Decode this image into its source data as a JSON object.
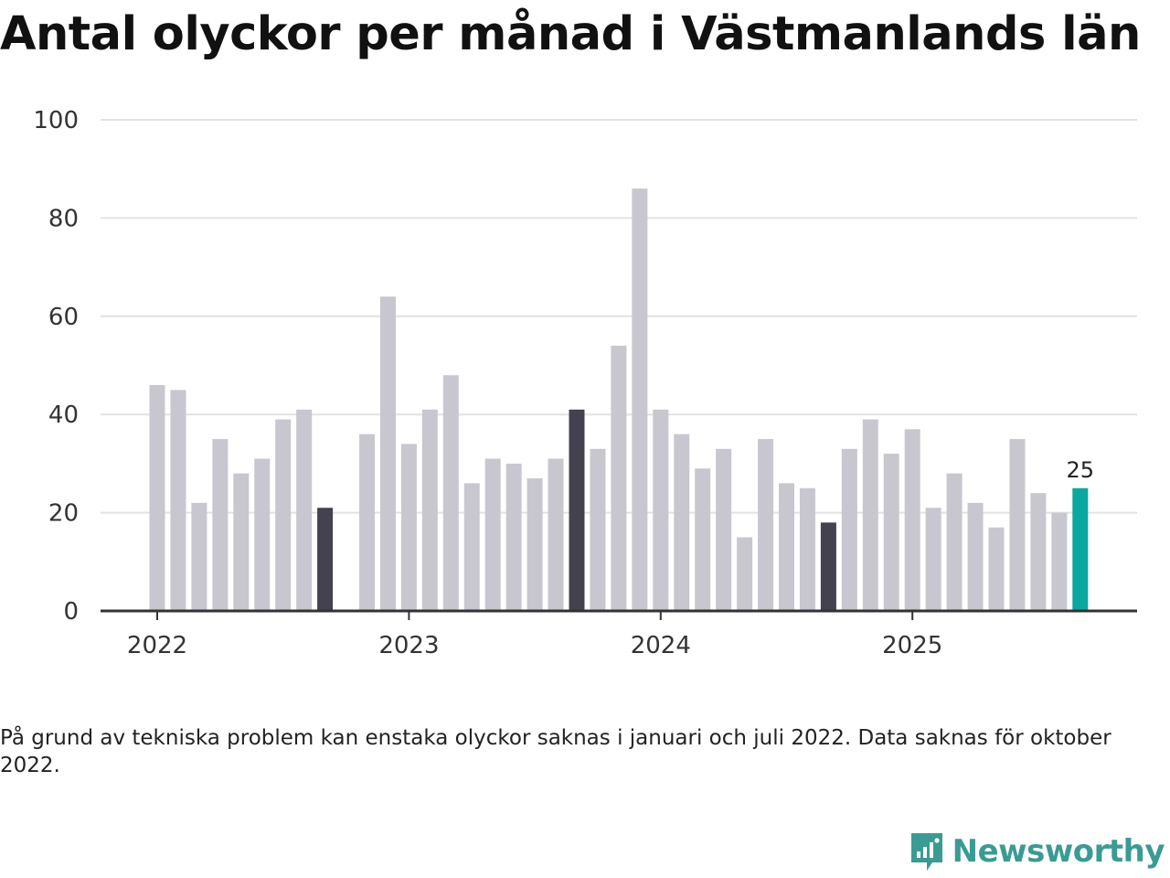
{
  "title": "Antal olyckor per månad i Västmanlands län",
  "footnote": "På grund av tekniska problem kan enstaka olyckor saknas i januari och juli 2022. Data saknas för oktober 2022.",
  "brand": {
    "name": "Newsworthy"
  },
  "colors": {
    "bar_default": "#c8c7cf",
    "bar_highlight": "#43424e",
    "bar_latest": "#0aa89e",
    "grid": "#e2e2e2",
    "axis": "#333333",
    "brand": "#3a9b94"
  },
  "chart_data": {
    "type": "bar",
    "title": "Antal olyckor per månad i Västmanlands län",
    "xlabel": "",
    "ylabel": "",
    "ylim": [
      0,
      100
    ],
    "yticks": [
      0,
      20,
      40,
      60,
      80,
      100
    ],
    "grid": true,
    "x_tick_labels": [
      {
        "label": "2022",
        "index": 0
      },
      {
        "label": "2023",
        "index": 12
      },
      {
        "label": "2024",
        "index": 24
      },
      {
        "label": "2025",
        "index": 36
      }
    ],
    "categories": [
      "2022-01",
      "2022-02",
      "2022-03",
      "2022-04",
      "2022-05",
      "2022-06",
      "2022-07",
      "2022-08",
      "2022-09",
      "2022-10",
      "2022-11",
      "2022-12",
      "2023-01",
      "2023-02",
      "2023-03",
      "2023-04",
      "2023-05",
      "2023-06",
      "2023-07",
      "2023-08",
      "2023-09",
      "2023-10",
      "2023-11",
      "2023-12",
      "2024-01",
      "2024-02",
      "2024-03",
      "2024-04",
      "2024-05",
      "2024-06",
      "2024-07",
      "2024-08",
      "2024-09",
      "2024-10",
      "2024-11",
      "2024-12",
      "2025-01",
      "2025-02",
      "2025-03",
      "2025-04",
      "2025-05",
      "2025-06",
      "2025-07",
      "2025-08",
      "2025-09"
    ],
    "values": [
      46,
      45,
      22,
      35,
      28,
      31,
      39,
      41,
      21,
      null,
      36,
      64,
      34,
      41,
      48,
      26,
      31,
      30,
      27,
      31,
      41,
      33,
      54,
      86,
      41,
      36,
      29,
      33,
      15,
      35,
      26,
      25,
      18,
      33,
      39,
      32,
      37,
      21,
      28,
      22,
      17,
      35,
      24,
      20,
      25
    ],
    "highlight_indices": [
      8,
      20,
      32
    ],
    "latest_index": 44,
    "latest_label": "25"
  }
}
